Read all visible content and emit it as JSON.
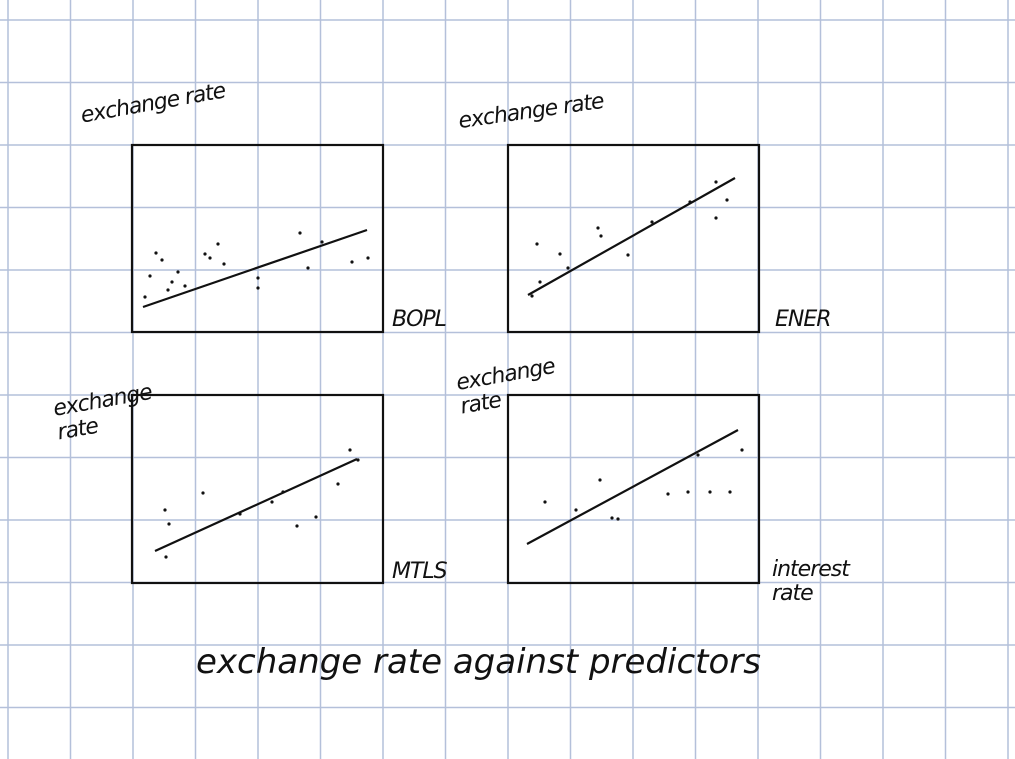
{
  "title": "exchange rate against predictors",
  "panels": [
    {
      "y_label": "exchange rate",
      "x_label": "BOPL"
    },
    {
      "y_label": "exchange rate",
      "x_label": "ENER"
    },
    {
      "y_label": "exchange rate",
      "x_label": "MTLS"
    },
    {
      "y_label": "exchange rate",
      "x_label": "interest rate"
    }
  ]
}
